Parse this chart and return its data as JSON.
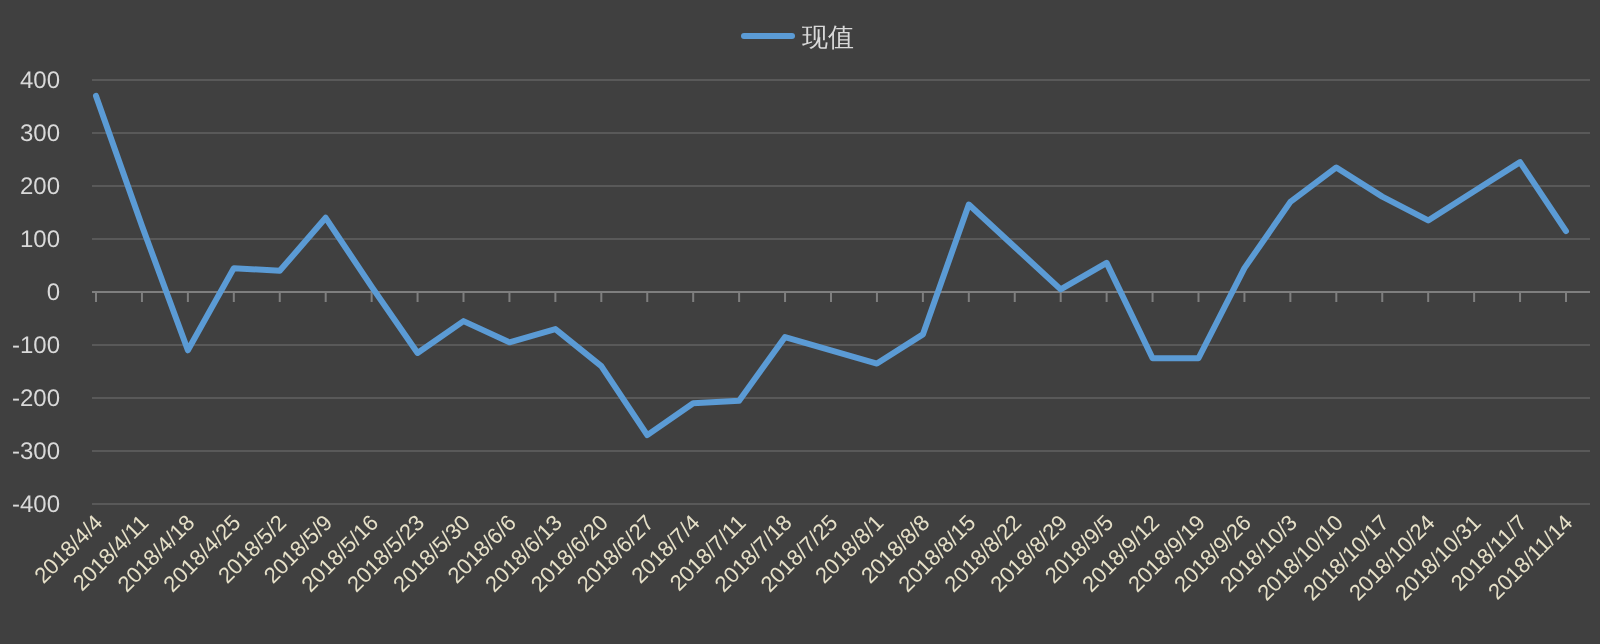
{
  "chart_data": {
    "type": "line",
    "categories": [
      "2018/4/4",
      "2018/4/11",
      "2018/4/18",
      "2018/4/25",
      "2018/5/2",
      "2018/5/9",
      "2018/5/16",
      "2018/5/23",
      "2018/5/30",
      "2018/6/6",
      "2018/6/13",
      "2018/6/20",
      "2018/6/27",
      "2018/7/4",
      "2018/7/11",
      "2018/7/18",
      "2018/7/25",
      "2018/8/1",
      "2018/8/8",
      "2018/8/15",
      "2018/8/22",
      "2018/8/29",
      "2018/9/5",
      "2018/9/12",
      "2018/9/19",
      "2018/9/26",
      "2018/10/3",
      "2018/10/10",
      "2018/10/17",
      "2018/10/24",
      "2018/10/31",
      "2018/11/7",
      "2018/11/14"
    ],
    "series": [
      {
        "name": "现值",
        "color": "#5b9bd5",
        "values": [
          370,
          125,
          -110,
          45,
          40,
          140,
          10,
          -115,
          -55,
          -95,
          -70,
          -140,
          -270,
          -210,
          -205,
          -85,
          -110,
          -135,
          -80,
          165,
          85,
          5,
          55,
          -125,
          -125,
          45,
          170,
          235,
          180,
          135,
          190,
          245,
          115
        ]
      }
    ],
    "ylim": [
      -400,
      400
    ],
    "yticks": [
      -400,
      -300,
      -200,
      -100,
      0,
      100,
      200,
      300,
      400
    ],
    "grid": "y",
    "legend": "top"
  }
}
